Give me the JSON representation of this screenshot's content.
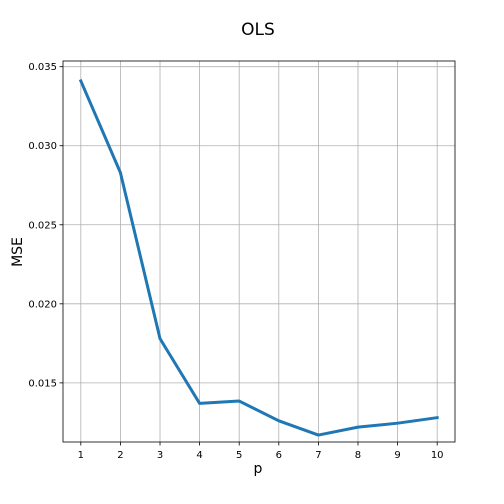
{
  "chart_data": {
    "type": "line",
    "title": "OLS",
    "xlabel": "p",
    "ylabel": "MSE",
    "x": [
      1,
      2,
      3,
      4,
      5,
      6,
      7,
      8,
      9,
      10
    ],
    "series": [
      {
        "values": [
          0.0341,
          0.0283,
          0.0178,
          0.0137,
          0.01385,
          0.0126,
          0.0117,
          0.0122,
          0.01245,
          0.0128
        ],
        "color": "#1f77b4"
      }
    ],
    "xticks": [
      1,
      2,
      3,
      4,
      5,
      6,
      7,
      8,
      9,
      10
    ],
    "xtick_labels": [
      "1",
      "2",
      "3",
      "4",
      "5",
      "6",
      "7",
      "8",
      "9",
      "10"
    ],
    "yticks": [
      0.015,
      0.02,
      0.025,
      0.03,
      0.035
    ],
    "ytick_labels": [
      "0.015",
      "0.020",
      "0.025",
      "0.030",
      "0.035"
    ],
    "xlim": [
      0.55,
      10.45
    ],
    "ylim": [
      0.01126,
      0.03536
    ],
    "grid": true
  }
}
